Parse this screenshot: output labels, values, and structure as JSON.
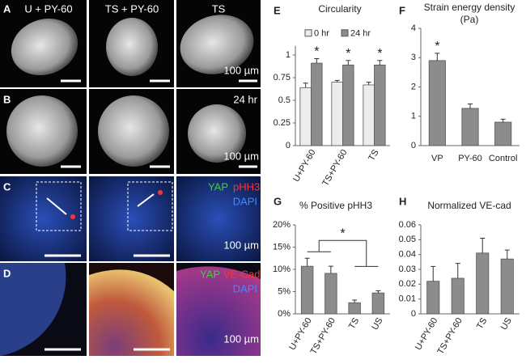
{
  "images": {
    "letters": [
      "A",
      "B",
      "C",
      "D"
    ],
    "column_labels": [
      "U + PY-60",
      "TS + PY-60",
      "TS"
    ],
    "time_label": "24 hr",
    "scale_labels": [
      "100 µm",
      "100 µm",
      "100 µm",
      "100 µm"
    ],
    "stains_c": [
      "YAP",
      "pHH3",
      "DAPI"
    ],
    "stains_d": [
      "YAP",
      "VE-Cad",
      "DAPI"
    ]
  },
  "chart_data": [
    {
      "type": "bar",
      "panel": "E",
      "title": "Circularity",
      "categories": [
        "U+PY-60",
        "TS+PY-60",
        "TS"
      ],
      "series": [
        {
          "name": "0 hr",
          "color": "#ececec",
          "values": [
            0.64,
            0.7,
            0.67
          ],
          "errors": [
            0.05,
            0.02,
            0.03
          ]
        },
        {
          "name": "24 hr",
          "color": "#8c8c8c",
          "values": [
            0.91,
            0.89,
            0.89
          ],
          "errors": [
            0.05,
            0.05,
            0.05
          ]
        }
      ],
      "annotations": [
        "*",
        "*",
        "*"
      ],
      "ylim": [
        0,
        1.1
      ],
      "yticks": [
        0,
        0.25,
        0.5,
        0.75,
        1
      ]
    },
    {
      "type": "bar",
      "panel": "F",
      "title": "Strain energy density (Pa)",
      "categories": [
        "VP",
        "PY-60",
        "Control"
      ],
      "values": [
        2.9,
        1.27,
        0.8
      ],
      "errors": [
        0.25,
        0.15,
        0.1
      ],
      "color": "#8c8c8c",
      "annotations": [
        "*"
      ],
      "ylim": [
        0,
        4
      ],
      "yticks": [
        0,
        1,
        2,
        3,
        4
      ]
    },
    {
      "type": "bar",
      "panel": "G",
      "title": "% Positive pHH3",
      "categories": [
        "U+PY-60",
        "TS+PY-60",
        "TS",
        "US"
      ],
      "values": [
        10.7,
        9.1,
        2.5,
        4.7
      ],
      "errors": [
        1.8,
        1.6,
        0.6,
        0.5
      ],
      "color": "#8c8c8c",
      "annotations": [
        "*"
      ],
      "ylim": [
        0,
        20
      ],
      "yticks": [
        {
          "value": 0,
          "label": "0%"
        },
        {
          "value": 5,
          "label": "5%"
        },
        {
          "value": 10,
          "label": "10%"
        },
        {
          "value": 15,
          "label": "15%"
        },
        {
          "value": 20,
          "label": "20%"
        }
      ]
    },
    {
      "type": "bar",
      "panel": "H",
      "title": "Normalized VE-cad",
      "categories": [
        "U+PY-60",
        "TS+PY-60",
        "TS",
        "US"
      ],
      "values": [
        0.022,
        0.024,
        0.041,
        0.037
      ],
      "errors": [
        0.01,
        0.01,
        0.01,
        0.006
      ],
      "color": "#8c8c8c",
      "ylim": [
        0,
        0.06
      ],
      "yticks": [
        0,
        0.01,
        0.02,
        0.03,
        0.04,
        0.05,
        0.06
      ]
    }
  ]
}
